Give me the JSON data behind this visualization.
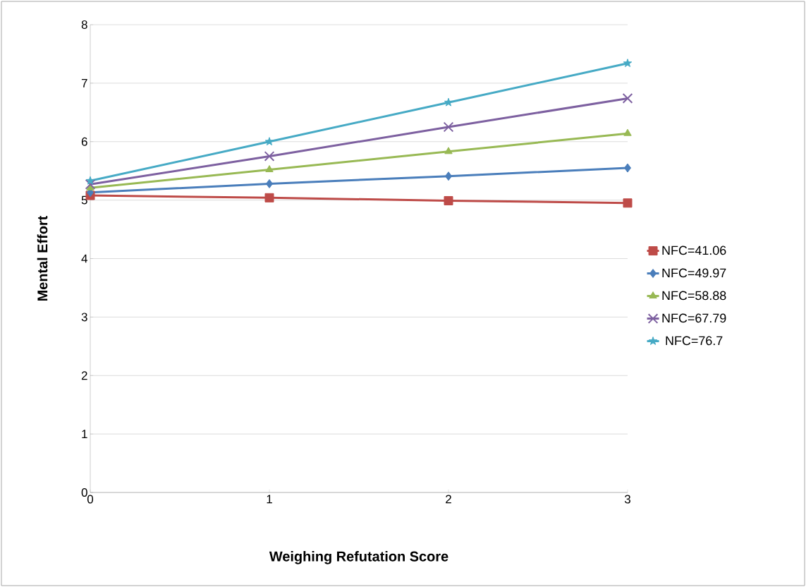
{
  "chart_data": {
    "type": "line",
    "xlabel": "Weighing Refutation Score",
    "ylabel": "Mental Effort",
    "x": [
      0,
      1,
      2,
      3
    ],
    "xlim": [
      0,
      3
    ],
    "xticks": [
      0,
      1,
      2,
      3
    ],
    "ylim": [
      0,
      8
    ],
    "yticks": [
      0,
      1,
      2,
      3,
      4,
      5,
      6,
      7,
      8
    ],
    "grid": "y",
    "legend": "right",
    "line_style": "solid",
    "series": [
      {
        "name": "NFC=41.06",
        "color": "#be4b48",
        "marker": "square",
        "values": [
          5.08,
          5.04,
          4.99,
          4.95
        ]
      },
      {
        "name": "NFC=49.97",
        "color": "#4a7ebb",
        "marker": "diamond",
        "values": [
          5.13,
          5.28,
          5.41,
          5.55
        ]
      },
      {
        "name": "NFC=58.88",
        "color": "#98b954",
        "marker": "triangle",
        "values": [
          5.21,
          5.52,
          5.83,
          6.14
        ]
      },
      {
        "name": "NFC=67.79",
        "color": "#7d60a0",
        "marker": "cross",
        "values": [
          5.27,
          5.75,
          6.25,
          6.74
        ]
      },
      {
        "name": "NFC=76.7",
        "color": "#46aac5",
        "marker": "star",
        "values": [
          5.33,
          6.0,
          6.67,
          7.34
        ]
      }
    ]
  }
}
